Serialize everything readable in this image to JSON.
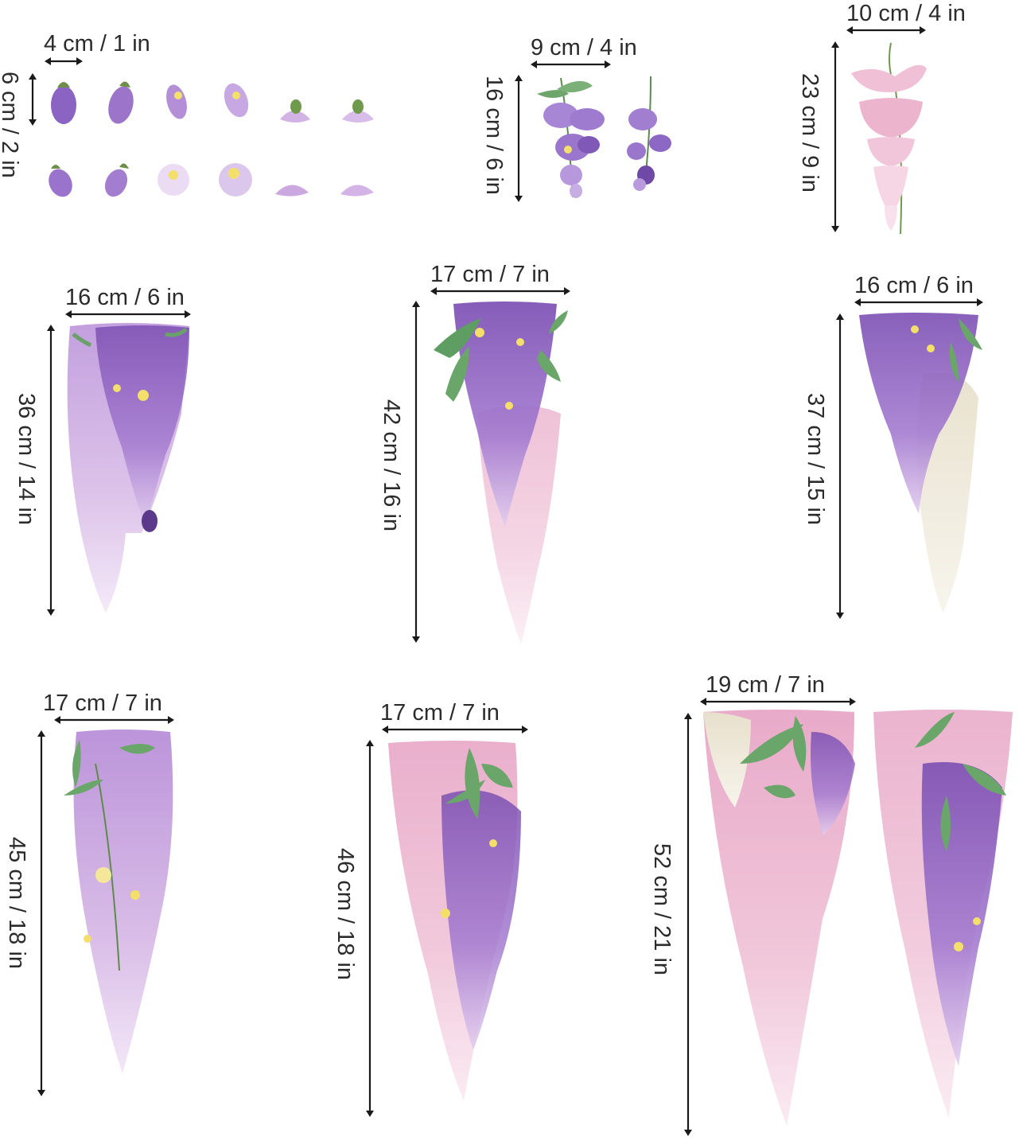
{
  "colors": {
    "ink": "#1a1a1a",
    "violet": "#8b5fc0",
    "deep_purple": "#5b3a8c",
    "lilac": "#c8a6e0",
    "pink": "#e9b3cf",
    "pale_pink": "#f4d6e4",
    "cream": "#ece6d6",
    "leaf": "#6aa06a",
    "yellow": "#f3df6a"
  },
  "pieces": [
    {
      "id": "petals",
      "width_label": "4 cm / 1 in",
      "height_label": "6 cm / 2 in",
      "palette": "violet",
      "icon": "petal-set-icon"
    },
    {
      "id": "small-sprigs",
      "width_label": "9 cm / 4 in",
      "height_label": "16 cm / 6 in",
      "palette": "violet",
      "icon": "sprig-icon"
    },
    {
      "id": "pink-sprig",
      "width_label": "10 cm / 4 in",
      "height_label": "23 cm / 9 in",
      "palette": "pink",
      "icon": "sprig-icon"
    },
    {
      "id": "cluster-a",
      "width_label": "16 cm / 6 in",
      "height_label": "36 cm / 14 in",
      "palette": "lilac",
      "icon": "wisteria-cluster-icon"
    },
    {
      "id": "cluster-b",
      "width_label": "17 cm / 7 in",
      "height_label": "42 cm / 16 in",
      "palette": "violet",
      "icon": "wisteria-cluster-icon"
    },
    {
      "id": "cluster-c",
      "width_label": "16 cm / 6 in",
      "height_label": "37 cm / 15 in",
      "palette": "violet-cream",
      "icon": "wisteria-cluster-icon"
    },
    {
      "id": "cluster-d",
      "width_label": "17 cm / 7 in",
      "height_label": "45 cm / 18 in",
      "palette": "lilac",
      "icon": "wisteria-cluster-icon"
    },
    {
      "id": "cluster-e",
      "width_label": "17 cm / 7 in",
      "height_label": "46 cm / 18 in",
      "palette": "pink-violet",
      "icon": "wisteria-cluster-icon"
    },
    {
      "id": "cluster-f",
      "width_label": "19 cm / 7 in",
      "height_label": "52 cm / 21 in",
      "palette": "pink-violet",
      "icon": "wisteria-cluster-icon"
    }
  ]
}
